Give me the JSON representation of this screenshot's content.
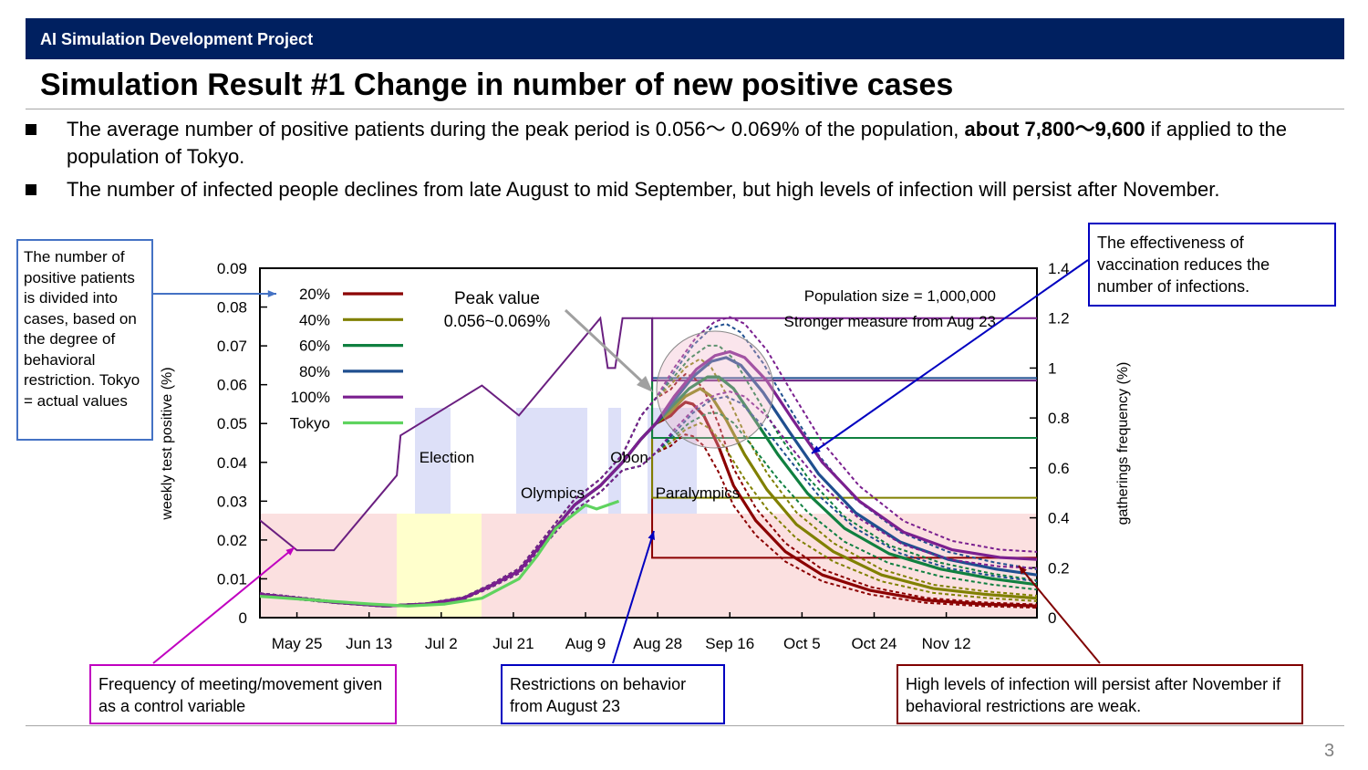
{
  "header": {
    "project": "AI Simulation Development Project"
  },
  "title": "Simulation Result #1 Change in number of new positive cases",
  "bullets": [
    {
      "text_before": "The average number of positive patients during the peak period is 0.056～ 0.069% of the population, ",
      "text_bold": "about 7,800～9,600",
      "text_after": " if applied to the population of Tokyo."
    },
    {
      "text_before": "The number of infected people declines from late August to mid September, but high levels of infection will persist after November.",
      "text_bold": "",
      "text_after": ""
    }
  ],
  "callouts": {
    "left": "The number of positive patients is divided into cases, based on the degree of behavioral restriction. Tokyo = actual values",
    "right_top": "The effectiveness of vaccination reduces the number of infections.",
    "bottom_left": "Frequency of meeting/movement given as a control variable",
    "bottom_mid": "Restrictions on behavior from August 23",
    "bottom_right": "High levels of infection will persist after November if behavioral restrictions are weak."
  },
  "page_number": "3",
  "colors": {
    "header_bg": "#002060",
    "series_20": "#8b0000",
    "series_40": "#808000",
    "series_60": "#108040",
    "series_80": "#1f4f8f",
    "series_100": "#7a1f8f",
    "series_tokyo": "#5fd35f",
    "gathering_line": "#6a1f80",
    "callout_left_border": "#4472c4",
    "callout_right_border": "#0000c0",
    "callout_pink_border": "#c000c0",
    "callout_red_border": "#800000"
  },
  "chart_data": {
    "type": "line",
    "ylabel": "weekly test positive (%)",
    "y2label": "gatherings frequency (%)",
    "ylim": [
      0,
      0.09
    ],
    "y2lim": [
      0,
      1.4
    ],
    "yticks": [
      "0",
      "0.01",
      "0.02",
      "0.03",
      "0.04",
      "0.05",
      "0.06",
      "0.07",
      "0.08",
      "0.09"
    ],
    "y2ticks": [
      "0",
      "0.2",
      "0.4",
      "0.6",
      "0.8",
      "1",
      "1.2",
      "1.4"
    ],
    "xticks": [
      "May 25",
      "Jun 13",
      "Jul 2",
      "Jul 21",
      "Aug 9",
      "Aug 28",
      "Sep 16",
      "Oct 5",
      "Oct 24",
      "Nov 12"
    ],
    "xlim_days": [
      0,
      210
    ],
    "legend": [
      "20%",
      "40%",
      "60%",
      "80%",
      "100%",
      "Tokyo"
    ],
    "annotations": {
      "peak_label": "Peak value",
      "peak_range": "0.056~0.069%",
      "population": "Population size = 1,000,000",
      "measure": "Stronger measure from Aug 23",
      "election": "Election",
      "obon": "Obon",
      "olympics": "Olympics",
      "paralympics": "Paralympics"
    },
    "series": [
      {
        "name": "20%",
        "points": [
          [
            0,
            0.006
          ],
          [
            20,
            0.004
          ],
          [
            34,
            0.003
          ],
          [
            45,
            0.0035
          ],
          [
            55,
            0.005
          ],
          [
            62,
            0.008
          ],
          [
            70,
            0.012
          ],
          [
            78,
            0.021
          ],
          [
            85,
            0.029
          ],
          [
            92,
            0.034
          ],
          [
            98,
            0.04
          ],
          [
            103,
            0.046
          ],
          [
            107,
            0.05
          ],
          [
            111,
            0.052
          ],
          [
            113,
            0.054
          ],
          [
            115,
            0.0555
          ],
          [
            117,
            0.055
          ],
          [
            120,
            0.052
          ],
          [
            124,
            0.044
          ],
          [
            128,
            0.034
          ],
          [
            134,
            0.025
          ],
          [
            142,
            0.017
          ],
          [
            152,
            0.011
          ],
          [
            165,
            0.007
          ],
          [
            180,
            0.0045
          ],
          [
            195,
            0.0035
          ],
          [
            210,
            0.003
          ]
        ]
      },
      {
        "name": "40%",
        "points": [
          [
            0,
            0.006
          ],
          [
            20,
            0.004
          ],
          [
            34,
            0.003
          ],
          [
            45,
            0.0035
          ],
          [
            55,
            0.005
          ],
          [
            62,
            0.008
          ],
          [
            70,
            0.012
          ],
          [
            78,
            0.021
          ],
          [
            85,
            0.029
          ],
          [
            92,
            0.034
          ],
          [
            98,
            0.04
          ],
          [
            103,
            0.046
          ],
          [
            107,
            0.05
          ],
          [
            111,
            0.053
          ],
          [
            115,
            0.057
          ],
          [
            119,
            0.059
          ],
          [
            122,
            0.057
          ],
          [
            126,
            0.051
          ],
          [
            131,
            0.042
          ],
          [
            137,
            0.033
          ],
          [
            145,
            0.024
          ],
          [
            155,
            0.017
          ],
          [
            168,
            0.011
          ],
          [
            182,
            0.0075
          ],
          [
            196,
            0.006
          ],
          [
            210,
            0.005
          ]
        ]
      },
      {
        "name": "60%",
        "points": [
          [
            0,
            0.006
          ],
          [
            20,
            0.004
          ],
          [
            34,
            0.003
          ],
          [
            45,
            0.0035
          ],
          [
            55,
            0.005
          ],
          [
            62,
            0.008
          ],
          [
            70,
            0.012
          ],
          [
            78,
            0.021
          ],
          [
            85,
            0.029
          ],
          [
            92,
            0.034
          ],
          [
            98,
            0.04
          ],
          [
            103,
            0.046
          ],
          [
            107,
            0.05
          ],
          [
            111,
            0.054
          ],
          [
            116,
            0.059
          ],
          [
            121,
            0.062
          ],
          [
            124,
            0.062
          ],
          [
            128,
            0.059
          ],
          [
            133,
            0.052
          ],
          [
            140,
            0.042
          ],
          [
            148,
            0.032
          ],
          [
            158,
            0.023
          ],
          [
            170,
            0.0165
          ],
          [
            184,
            0.0125
          ],
          [
            198,
            0.01
          ],
          [
            210,
            0.0085
          ]
        ]
      },
      {
        "name": "80%",
        "points": [
          [
            0,
            0.006
          ],
          [
            20,
            0.004
          ],
          [
            34,
            0.003
          ],
          [
            45,
            0.0035
          ],
          [
            55,
            0.005
          ],
          [
            62,
            0.008
          ],
          [
            70,
            0.012
          ],
          [
            78,
            0.021
          ],
          [
            85,
            0.029
          ],
          [
            92,
            0.034
          ],
          [
            98,
            0.04
          ],
          [
            103,
            0.046
          ],
          [
            107,
            0.05
          ],
          [
            112,
            0.056
          ],
          [
            117,
            0.062
          ],
          [
            122,
            0.066
          ],
          [
            126,
            0.067
          ],
          [
            130,
            0.065
          ],
          [
            136,
            0.058
          ],
          [
            143,
            0.048
          ],
          [
            151,
            0.037
          ],
          [
            161,
            0.027
          ],
          [
            173,
            0.0195
          ],
          [
            186,
            0.015
          ],
          [
            199,
            0.0125
          ],
          [
            210,
            0.011
          ]
        ]
      },
      {
        "name": "100%",
        "points": [
          [
            0,
            0.006
          ],
          [
            20,
            0.004
          ],
          [
            34,
            0.003
          ],
          [
            45,
            0.0035
          ],
          [
            55,
            0.005
          ],
          [
            62,
            0.008
          ],
          [
            70,
            0.012
          ],
          [
            78,
            0.021
          ],
          [
            85,
            0.029
          ],
          [
            92,
            0.034
          ],
          [
            98,
            0.04
          ],
          [
            103,
            0.046
          ],
          [
            107,
            0.05
          ],
          [
            112,
            0.057
          ],
          [
            118,
            0.064
          ],
          [
            123,
            0.0675
          ],
          [
            127,
            0.0685
          ],
          [
            131,
            0.067
          ],
          [
            137,
            0.061
          ],
          [
            144,
            0.051
          ],
          [
            152,
            0.04
          ],
          [
            162,
            0.03
          ],
          [
            174,
            0.022
          ],
          [
            187,
            0.0175
          ],
          [
            200,
            0.0155
          ],
          [
            210,
            0.015
          ]
        ]
      },
      {
        "name": "Tokyo",
        "points": [
          [
            0,
            0.0055
          ],
          [
            15,
            0.0045
          ],
          [
            30,
            0.0035
          ],
          [
            40,
            0.003
          ],
          [
            50,
            0.0035
          ],
          [
            60,
            0.005
          ],
          [
            66,
            0.008
          ],
          [
            70,
            0.01
          ],
          [
            75,
            0.016
          ],
          [
            80,
            0.023
          ],
          [
            84,
            0.026
          ],
          [
            88,
            0.029
          ],
          [
            91,
            0.028
          ],
          [
            94,
            0.029
          ],
          [
            97,
            0.03
          ]
        ]
      }
    ],
    "gathering_frequency": [
      [
        0,
        0.39
      ],
      [
        10,
        0.27
      ],
      [
        20,
        0.27
      ],
      [
        37,
        0.57
      ],
      [
        38,
        0.73
      ],
      [
        60,
        0.93
      ],
      [
        70,
        0.81
      ],
      [
        92,
        1.2
      ],
      [
        94,
        1.0
      ],
      [
        96,
        1.0
      ],
      [
        98,
        1.2
      ],
      [
        106,
        1.2
      ],
      [
        106,
        0.95
      ],
      [
        210,
        0.95
      ]
    ],
    "restriction_levels": [
      {
        "name": "20%",
        "value": 0.24
      },
      {
        "name": "40%",
        "value": 0.48
      },
      {
        "name": "60%",
        "value": 0.72
      },
      {
        "name": "80%",
        "value": 0.96
      },
      {
        "name": "100%",
        "value": 1.2
      }
    ]
  }
}
